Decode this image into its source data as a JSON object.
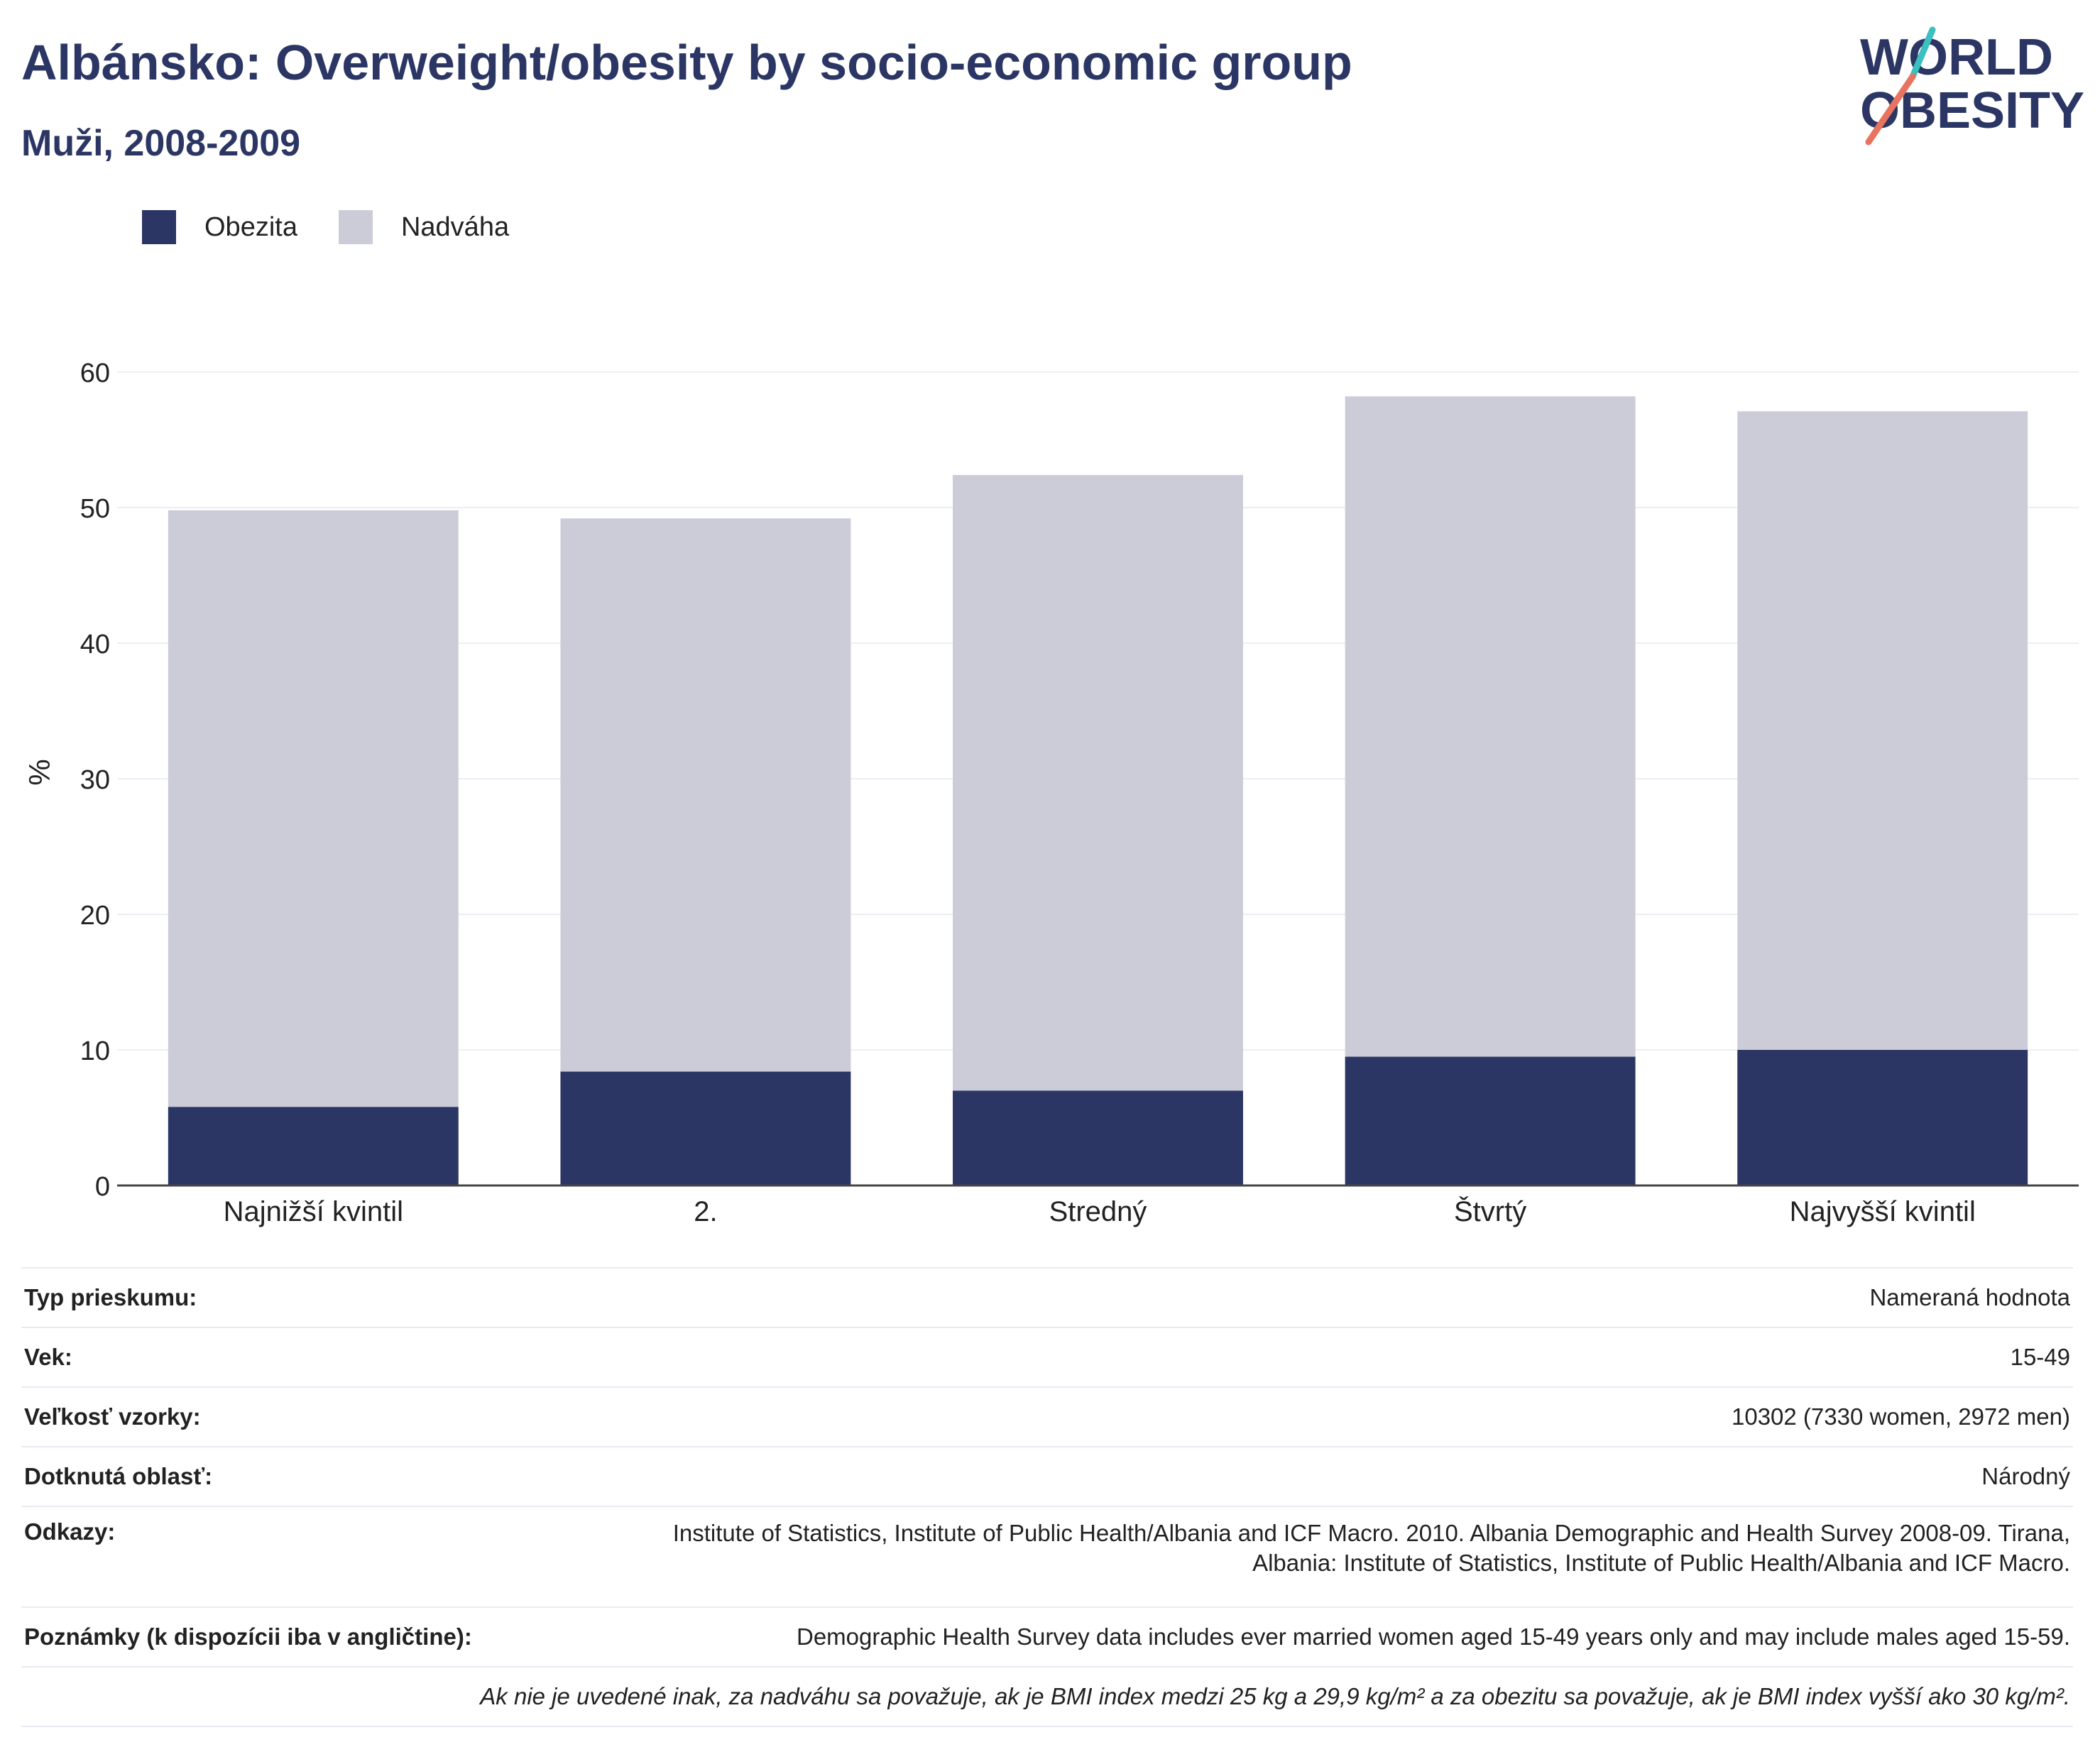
{
  "title": "Albánsko: Overweight/obesity by socio-economic group",
  "subtitle": "Muži, 2008-2009",
  "logo": {
    "line1": "WORLD",
    "line2": "OBESITY"
  },
  "colors": {
    "obesity": "#2b3664",
    "overweight": "#cbccd8",
    "title": "#2b3664",
    "logo_teal": "#3bbfbf",
    "logo_coral": "#e8735f"
  },
  "legend": [
    {
      "label": "Obezita",
      "color": "#2b3664"
    },
    {
      "label": "Nadváha",
      "color": "#cbccd8"
    }
  ],
  "chart_data": {
    "type": "bar",
    "stacked": true,
    "categories": [
      "Najnižší kvintil",
      "2.",
      "Stredný",
      "Štvrtý",
      "Najvyšší kvintil"
    ],
    "series": [
      {
        "name": "Obezita",
        "values": [
          5.8,
          8.4,
          7.0,
          9.5,
          10.0
        ]
      },
      {
        "name": "Nadváha",
        "values": [
          44.0,
          40.8,
          45.4,
          48.7,
          47.1
        ]
      }
    ],
    "ylabel": "%",
    "ylim": [
      0,
      60
    ],
    "yticks": [
      0,
      10,
      20,
      30,
      40,
      50,
      60
    ],
    "grid": true,
    "legend_position": "top-left"
  },
  "meta": [
    {
      "label": "Typ prieskumu:",
      "value": "Nameraná hodnota"
    },
    {
      "label": "Vek:",
      "value": "15-49"
    },
    {
      "label": "Veľkosť vzorky:",
      "value": "10302 (7330 women, 2972 men)"
    },
    {
      "label": "Dotknutá oblasť:",
      "value": "Národný"
    },
    {
      "label": "Odkazy:",
      "value_line1": "Institute of Statistics, Institute of Public Health/Albania and ICF Macro. 2010. Albania Demographic and Health Survey 2008-09. Tirana,",
      "value_line2": "Albania: Institute of Statistics, Institute of Public Health/Albania and ICF Macro."
    },
    {
      "label": "Poznámky (k dispozícii iba v angličtine):",
      "value": "Demographic Health Survey data includes ever married women aged 15-49 years only and may include males aged 15-59."
    }
  ],
  "footnote": "Ak nie je uvedené inak, za nadváhu sa považuje, ak je BMI index medzi 25 kg a 29,9 kg/m² a za obezitu sa považuje, ak je BMI index vyšší ako 30 kg/m²."
}
